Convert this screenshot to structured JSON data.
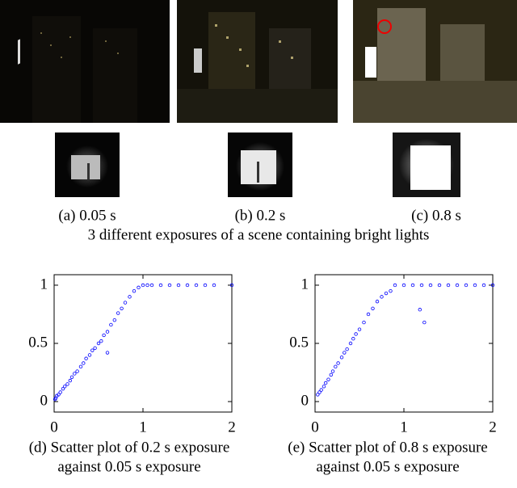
{
  "photo_captions": [
    "(a) 0.05 s",
    "(b) 0.2 s",
    "(c) 0.8 s"
  ],
  "figure_caption": "3 different exposures of a scene containing bright lights",
  "plot_captions": [
    [
      "(d) Scatter plot of 0.2 s exposure",
      "against 0.05 s exposure"
    ],
    [
      "(e) Scatter plot of 0.8 s exposure",
      "against 0.05 s exposure"
    ]
  ],
  "chart_data": [
    {
      "type": "scatter",
      "color": "#0000ff",
      "x": [
        0.01,
        0.02,
        0.03,
        0.05,
        0.07,
        0.1,
        0.12,
        0.15,
        0.18,
        0.2,
        0.23,
        0.26,
        0.3,
        0.33,
        0.36,
        0.4,
        0.43,
        0.46,
        0.5,
        0.53,
        0.56,
        0.6,
        0.64,
        0.68,
        0.72,
        0.76,
        0.8,
        0.85,
        0.9,
        0.95,
        1.0,
        1.05,
        1.1,
        1.2,
        1.3,
        1.4,
        1.5,
        1.6,
        1.7,
        1.8,
        2.0,
        0.6
      ],
      "values": [
        0.02,
        0.03,
        0.05,
        0.06,
        0.08,
        0.11,
        0.13,
        0.15,
        0.18,
        0.21,
        0.24,
        0.26,
        0.3,
        0.33,
        0.37,
        0.4,
        0.44,
        0.46,
        0.5,
        0.52,
        0.57,
        0.6,
        0.66,
        0.7,
        0.76,
        0.8,
        0.85,
        0.9,
        0.95,
        0.98,
        1,
        1,
        1,
        1,
        1,
        1,
        1,
        1,
        1,
        1,
        1,
        0.42
      ],
      "xlim": [
        0,
        2
      ],
      "ylim": [
        -0.09,
        1.09
      ],
      "xticks": [
        0,
        1,
        2
      ],
      "yticks": [
        0,
        0.5,
        1
      ]
    },
    {
      "type": "scatter",
      "color": "#0000ff",
      "x": [
        0.03,
        0.05,
        0.07,
        0.1,
        0.12,
        0.15,
        0.18,
        0.2,
        0.23,
        0.26,
        0.3,
        0.33,
        0.36,
        0.4,
        0.43,
        0.46,
        0.5,
        0.55,
        0.6,
        0.65,
        0.7,
        0.75,
        0.8,
        0.85,
        0.9,
        1.0,
        1.1,
        1.2,
        1.3,
        1.4,
        1.5,
        1.6,
        1.7,
        1.8,
        1.9,
        2.0,
        1.18,
        1.23
      ],
      "values": [
        0.06,
        0.08,
        0.1,
        0.13,
        0.16,
        0.19,
        0.23,
        0.26,
        0.3,
        0.33,
        0.38,
        0.42,
        0.45,
        0.5,
        0.54,
        0.58,
        0.62,
        0.68,
        0.75,
        0.8,
        0.86,
        0.9,
        0.93,
        0.95,
        1,
        1,
        1,
        1,
        1,
        1,
        1,
        1,
        1,
        1,
        1,
        1,
        0.79,
        0.68
      ],
      "xlim": [
        0,
        2
      ],
      "ylim": [
        -0.09,
        1.09
      ],
      "xticks": [
        0,
        1,
        2
      ],
      "yticks": [
        0,
        0.5,
        1
      ]
    }
  ]
}
